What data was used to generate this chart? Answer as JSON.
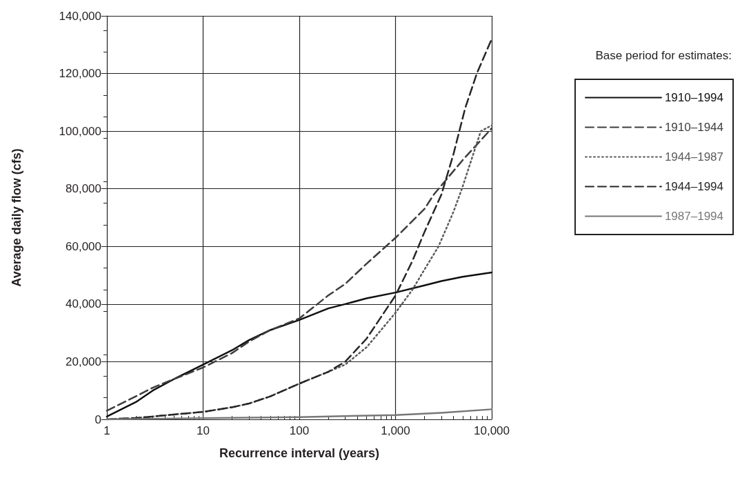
{
  "chart_data": {
    "type": "line",
    "xlabel": "Recurrence interval (years)",
    "ylabel": "Average daily flow (cfs)",
    "legend_title": "Base period for estimates:",
    "log": "x",
    "xlim": [
      1,
      10000
    ],
    "xticks": [
      1,
      10,
      100,
      {
        "value": 1000,
        "label": "1,000"
      },
      {
        "value": 10000,
        "label": "10,000"
      }
    ],
    "ylim": [
      0,
      140000
    ],
    "yticks": [
      0,
      {
        "value": 20000,
        "label": "20,000"
      },
      {
        "value": 40000,
        "label": "40,000"
      },
      {
        "value": 60000,
        "label": "60,000"
      },
      {
        "value": 80000,
        "label": "80,000"
      },
      {
        "value": 100000,
        "label": "100,000"
      },
      {
        "value": 120000,
        "label": "120,000"
      },
      {
        "value": 140000,
        "label": "140,000"
      }
    ],
    "grid": true,
    "legend": "right",
    "marker": "none",
    "series": [
      {
        "name": "1910–1994",
        "color": "#0f0f0f",
        "line_style": "solid",
        "x": [
          1,
          2,
          3,
          5,
          10,
          20,
          30,
          50,
          100,
          200,
          300,
          500,
          1000,
          2000,
          3000,
          5000,
          10000
        ],
        "values": [
          1000,
          6000,
          10000,
          14000,
          19000,
          24000,
          27500,
          31000,
          34500,
          38500,
          40000,
          42000,
          44000,
          46500,
          48000,
          49500,
          51000
        ]
      },
      {
        "name": "1910–1944",
        "color": "#3d3d3d",
        "line_style": "dashed",
        "x": [
          1,
          2,
          3,
          5,
          10,
          20,
          30,
          50,
          100,
          200,
          300,
          500,
          1000,
          2000,
          2500,
          5000,
          10000
        ],
        "values": [
          3000,
          8000,
          11000,
          14000,
          18000,
          23000,
          27000,
          31000,
          35000,
          43000,
          47000,
          54000,
          63000,
          73000,
          78000,
          90000,
          101000
        ]
      },
      {
        "name": "1944–1987",
        "color": "#5a5a5a",
        "line_style": "dotted",
        "x": [
          1,
          2,
          3,
          5,
          10,
          20,
          30,
          50,
          100,
          200,
          300,
          500,
          1000,
          1500,
          2000,
          2800,
          4000,
          4900,
          7700,
          10000
        ],
        "values": [
          0,
          500,
          1000,
          1700,
          2600,
          4200,
          5500,
          8000,
          12400,
          16500,
          19000,
          25000,
          37000,
          45000,
          52000,
          60000,
          72000,
          80000,
          100000,
          102000
        ]
      },
      {
        "name": "1944–1994",
        "color": "#262626",
        "line_style": "dashed",
        "x": [
          1,
          2,
          3,
          5,
          10,
          20,
          30,
          50,
          100,
          200,
          300,
          500,
          1000,
          1500,
          2000,
          3000,
          4000,
          5300,
          7000,
          10000
        ],
        "values": [
          0,
          500,
          1000,
          1700,
          2600,
          4200,
          5500,
          8000,
          12400,
          16500,
          20000,
          28000,
          43000,
          55000,
          65000,
          78000,
          92000,
          108000,
          120000,
          132000
        ]
      },
      {
        "name": "1987–1994",
        "color": "#777777",
        "line_style": "solid",
        "x": [
          1,
          10,
          100,
          1000,
          3000,
          10000
        ],
        "values": [
          0,
          400,
          800,
          1500,
          2300,
          3500
        ]
      }
    ]
  }
}
